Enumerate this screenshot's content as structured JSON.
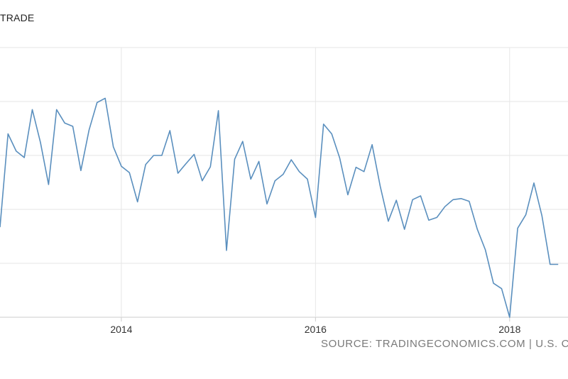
{
  "chart_title": "TRADE",
  "source_text": "SOURCE: TRADINGECONOMICS.COM | U.S. CEN",
  "colors": {
    "line": "#5a8fbe",
    "grid": "#e6e6e6",
    "axis": "#cccccc"
  },
  "chart_data": {
    "type": "line",
    "title": "TRADE",
    "xlabel": "",
    "ylabel": "",
    "grid": true,
    "xlim": [
      2012.75,
      2018.55
    ],
    "ylim": [
      0,
      5
    ],
    "x_ticks": [
      {
        "value": 2014,
        "label": "2014"
      },
      {
        "value": 2016,
        "label": "2016"
      },
      {
        "value": 2018,
        "label": "2018"
      }
    ],
    "y_gridlines": [
      0,
      1,
      2,
      3,
      4,
      5
    ],
    "series": [
      {
        "x": [
          2012.75,
          2012.833,
          2012.917,
          2013.0,
          2013.083,
          2013.167,
          2013.25,
          2013.333,
          2013.417,
          2013.5,
          2013.583,
          2013.667,
          2013.75,
          2013.833,
          2013.917,
          2014.0,
          2014.083,
          2014.167,
          2014.25,
          2014.333,
          2014.417,
          2014.5,
          2014.583,
          2014.667,
          2014.75,
          2014.833,
          2014.917,
          2015.0,
          2015.083,
          2015.167,
          2015.25,
          2015.333,
          2015.417,
          2015.5,
          2015.583,
          2015.667,
          2015.75,
          2015.833,
          2015.917,
          2016.0,
          2016.083,
          2016.167,
          2016.25,
          2016.333,
          2016.417,
          2016.5,
          2016.583,
          2016.667,
          2016.75,
          2016.833,
          2016.917,
          2017.0,
          2017.083,
          2017.167,
          2017.25,
          2017.333,
          2017.417,
          2017.5,
          2017.583,
          2017.667,
          2017.75,
          2017.833,
          2017.917,
          2018.0,
          2018.083,
          2018.167,
          2018.25,
          2018.333,
          2018.417,
          2018.5
        ],
        "values": [
          1.67,
          3.4,
          3.08,
          2.96,
          3.85,
          3.24,
          2.46,
          3.85,
          3.6,
          3.54,
          2.72,
          3.47,
          3.98,
          4.06,
          3.16,
          2.8,
          2.68,
          2.14,
          2.83,
          3.0,
          3.0,
          3.46,
          2.67,
          2.85,
          3.02,
          2.53,
          2.79,
          3.83,
          1.24,
          2.93,
          3.26,
          2.56,
          2.89,
          2.1,
          2.53,
          2.65,
          2.92,
          2.7,
          2.56,
          1.85,
          3.58,
          3.4,
          2.95,
          2.27,
          2.78,
          2.7,
          3.2,
          2.43,
          1.78,
          2.17,
          1.63,
          2.18,
          2.25,
          1.8,
          1.85,
          2.05,
          2.18,
          2.2,
          2.15,
          1.63,
          1.25,
          0.63,
          0.53,
          0.0,
          1.65,
          1.9,
          2.49,
          1.88,
          0.98,
          0.98
        ]
      }
    ]
  }
}
